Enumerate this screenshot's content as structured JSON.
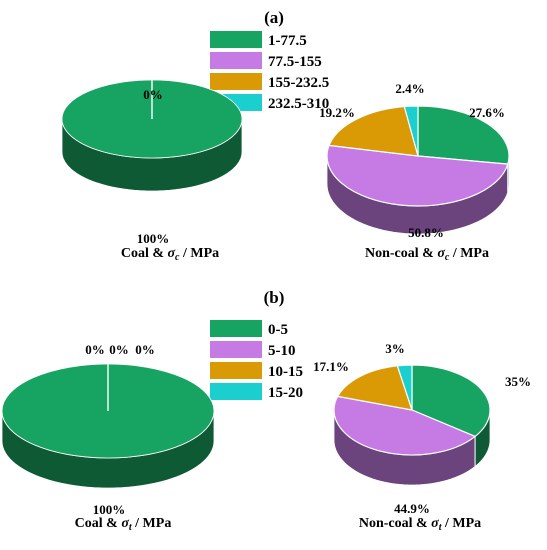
{
  "chart_data": [
    {
      "type": "pie",
      "panel_label": "(a)",
      "legend": [
        "1-77.5",
        "77.5-155",
        "155-232.5",
        "232.5-310"
      ],
      "colors": [
        "#17a361",
        "#c57be3",
        "#d99a06",
        "#1ccfcf"
      ],
      "charts": [
        {
          "title_parts": [
            "Coal & ",
            "σ",
            "c",
            " / MPa"
          ],
          "values": [
            100,
            0,
            0,
            0
          ],
          "labels": [
            "100%",
            "0%"
          ]
        },
        {
          "title_parts": [
            "Non-coal & ",
            "σ",
            "c",
            " / MPa"
          ],
          "values": [
            27.6,
            50.8,
            19.2,
            2.4
          ],
          "labels": [
            "27.6%",
            "50.8%",
            "19.2%",
            "2.4%"
          ]
        }
      ]
    },
    {
      "type": "pie",
      "panel_label": "(b)",
      "legend": [
        "0-5",
        "5-10",
        "10-15",
        "15-20"
      ],
      "colors": [
        "#17a361",
        "#c57be3",
        "#d99a06",
        "#1ccfcf"
      ],
      "charts": [
        {
          "title_parts": [
            "Coal & ",
            "σ",
            "t",
            " / MPa"
          ],
          "values": [
            100,
            0,
            0,
            0
          ],
          "labels": [
            "100%",
            "0%",
            "0%",
            "0%"
          ]
        },
        {
          "title_parts": [
            "Non-coal & ",
            "σ",
            "t",
            " / MPa"
          ],
          "values": [
            35,
            44.9,
            17.1,
            3
          ],
          "labels": [
            "35%",
            "44.9%",
            "17.1%",
            "3%"
          ]
        }
      ]
    }
  ]
}
